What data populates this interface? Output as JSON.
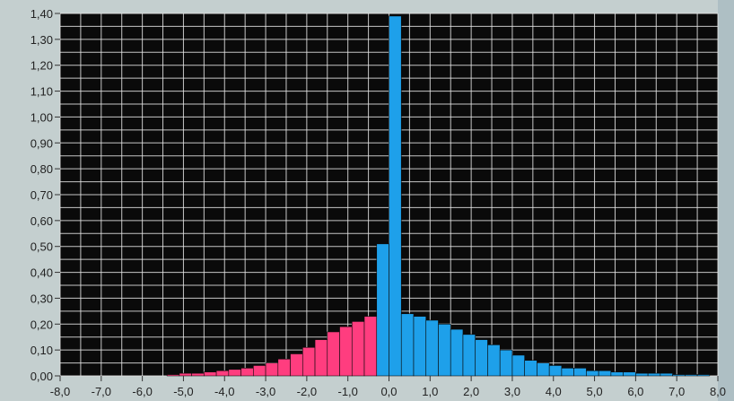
{
  "chart_data": {
    "type": "bar",
    "title": "",
    "xlabel": "",
    "ylabel": "",
    "xlim": [
      -8.0,
      8.0
    ],
    "ylim": [
      0.0,
      1.4
    ],
    "grid": true,
    "x_ticks": [
      "-8,0",
      "-7,0",
      "-6,0",
      "-5,0",
      "-4,0",
      "-3,0",
      "-2,0",
      "-1,0",
      "0,0",
      "1,0",
      "2,0",
      "3,0",
      "4,0",
      "5,0",
      "6,0",
      "7,0",
      "8,0"
    ],
    "y_ticks": [
      "0,00",
      "0,10",
      "0,20",
      "0,30",
      "0,40",
      "0,50",
      "0,60",
      "0,70",
      "0,80",
      "0,90",
      "1,00",
      "1,10",
      "1,20",
      "1,30",
      "1,40"
    ],
    "bin_width": 0.3,
    "colors": {
      "negative": "#ff3d7f",
      "positive": "#1ea0ea",
      "background": "#0a0a0a",
      "grid": "#e6e6e6"
    },
    "series": [
      {
        "color": "negative",
        "x": [
          -5.7,
          -5.4,
          -5.1,
          -4.8,
          -4.5,
          -4.2,
          -3.9,
          -3.6,
          -3.3,
          -3.0,
          -2.7,
          -2.4,
          -2.1,
          -1.8,
          -1.5,
          -1.2,
          -0.9,
          -0.6
        ],
        "values": [
          0.0,
          0.005,
          0.01,
          0.01,
          0.015,
          0.02,
          0.025,
          0.03,
          0.04,
          0.05,
          0.065,
          0.085,
          0.11,
          0.14,
          0.17,
          0.19,
          0.21,
          0.23
        ]
      },
      {
        "color": "positive",
        "x": [
          -0.3,
          0.0,
          0.3,
          0.6,
          0.9,
          1.2,
          1.5,
          1.8,
          2.1,
          2.4,
          2.7,
          3.0,
          3.3,
          3.6,
          3.9,
          4.2,
          4.5,
          4.8,
          5.1,
          5.4,
          5.7,
          6.0,
          6.3,
          6.6,
          6.9,
          7.2,
          7.5
        ],
        "values": [
          0.51,
          1.39,
          0.24,
          0.23,
          0.215,
          0.2,
          0.18,
          0.16,
          0.14,
          0.12,
          0.1,
          0.08,
          0.06,
          0.05,
          0.04,
          0.03,
          0.03,
          0.02,
          0.02,
          0.015,
          0.015,
          0.01,
          0.01,
          0.01,
          0.005,
          0.005,
          0.005
        ]
      }
    ]
  }
}
